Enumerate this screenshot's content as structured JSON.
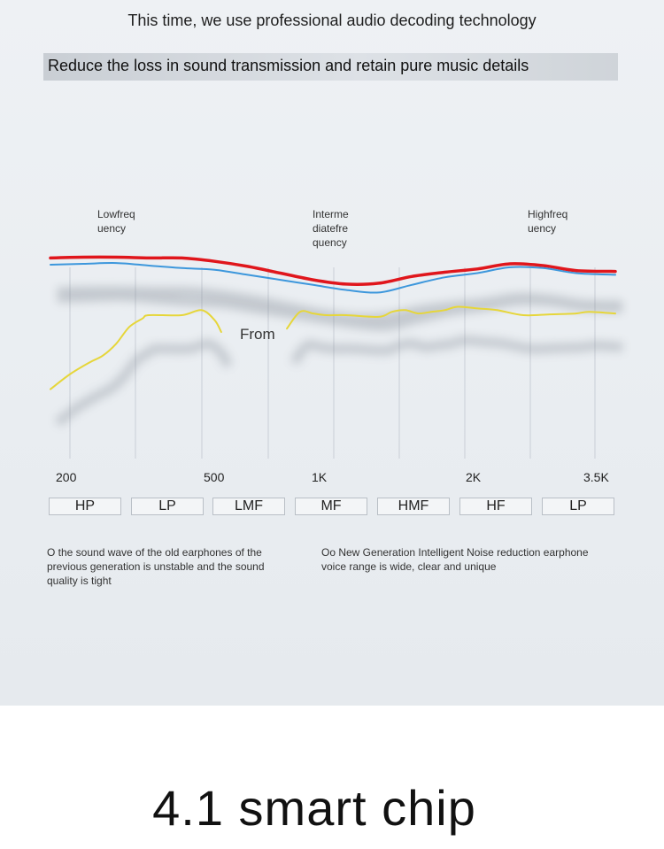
{
  "header": {
    "title": "This time, we use professional audio decoding technology",
    "subtitle": "Reduce the loss in sound transmission and retain pure music details"
  },
  "band_labels": [
    {
      "name": "low",
      "line1": "Lowfreq",
      "line2": "uency",
      "line3": ""
    },
    {
      "name": "mid",
      "line1": "Interme",
      "line2": "diatefre",
      "line3": "quency"
    },
    {
      "name": "high",
      "line1": "Highfreq",
      "line2": "uency",
      "line3": ""
    }
  ],
  "ranges": [
    "HP",
    "LP",
    "LMF",
    "MF",
    "HMF",
    "HF",
    "LP"
  ],
  "notes": {
    "old": "O the sound wave of the old earphones of the previous generation is unstable and the sound quality is tight",
    "new": "Oo New Generation Intelligent Noise reduction earphone voice range is wide, clear and unique"
  },
  "footer": {
    "title": "4.1 smart chip"
  },
  "colors": {
    "red": "#e0161c",
    "blue": "#3d97dc",
    "yellow": "#e6d63a",
    "grid": "#c9ced6"
  },
  "chart_data": {
    "type": "line",
    "title": "",
    "x_tick_labels": [
      "200",
      "500",
      "1K",
      "2K",
      "3.5K"
    ],
    "x_tick_positions": [
      0,
      2,
      4,
      6,
      8.4
    ],
    "xlim": [
      0,
      8.6
    ],
    "ylim": [
      0,
      10
    ],
    "annotation": "From",
    "series": [
      {
        "name": "red",
        "x": [
          0,
          0.5,
          1,
          1.5,
          2,
          2.5,
          3,
          3.5,
          4,
          4.5,
          5,
          5.5,
          6,
          6.5,
          7,
          7.5,
          8,
          8.6
        ],
        "y": [
          9.4,
          9.45,
          9.45,
          9.4,
          9.4,
          9.2,
          8.9,
          8.5,
          8.1,
          7.85,
          7.9,
          8.3,
          8.55,
          8.75,
          9.05,
          8.95,
          8.65,
          8.6
        ]
      },
      {
        "name": "blue",
        "x": [
          0,
          0.5,
          1,
          1.5,
          2,
          2.5,
          3,
          3.5,
          4,
          4.5,
          5,
          5.5,
          6,
          6.5,
          7,
          7.5,
          8,
          8.6
        ],
        "y": [
          9.0,
          9.05,
          9.1,
          8.95,
          8.8,
          8.7,
          8.4,
          8.1,
          7.8,
          7.5,
          7.35,
          7.8,
          8.25,
          8.5,
          8.85,
          8.8,
          8.5,
          8.4
        ]
      },
      {
        "name": "yellow",
        "x": [
          0,
          0.3,
          0.6,
          0.8,
          1.0,
          1.2,
          1.4,
          1.5,
          2.0,
          2.3,
          2.5,
          2.6,
          3.6,
          3.8,
          4.0,
          4.2,
          4.5,
          5.0,
          5.2,
          5.4,
          5.6,
          5.8,
          6.0,
          6.2,
          6.5,
          6.8,
          7.2,
          7.6,
          8.0,
          8.2,
          8.6
        ],
        "y": [
          1.6,
          2.5,
          3.2,
          3.6,
          4.3,
          5.3,
          5.8,
          6.0,
          6.0,
          6.3,
          5.7,
          5.0,
          5.2,
          6.2,
          6.1,
          6.0,
          6.0,
          5.9,
          6.2,
          6.3,
          6.1,
          6.2,
          6.3,
          6.5,
          6.4,
          6.3,
          6.0,
          6.05,
          6.1,
          6.2,
          6.1
        ]
      }
    ]
  }
}
